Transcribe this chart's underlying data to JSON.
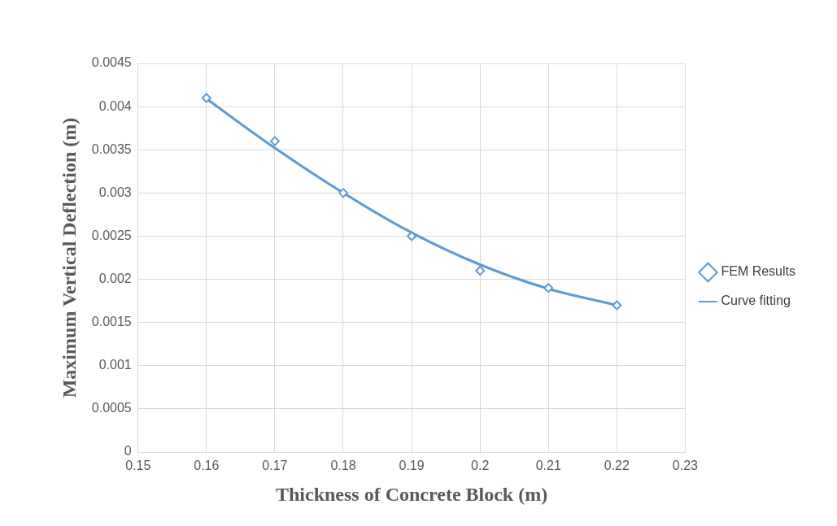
{
  "chart_data": {
    "type": "scatter",
    "xlabel": "Thickness of Concrete Block (m)",
    "ylabel": "Maximum Vertical Deflection (m)",
    "xlim": [
      0.15,
      0.23
    ],
    "xticks": [
      0.15,
      0.16,
      0.17,
      0.18,
      0.19,
      0.2,
      0.21,
      0.22,
      0.23
    ],
    "ylim": [
      0,
      0.0045
    ],
    "yticks": [
      0,
      0.0005,
      0.001,
      0.0015,
      0.002,
      0.0025,
      0.003,
      0.0035,
      0.004,
      0.0045
    ],
    "grid": true,
    "legend": "right",
    "series": [
      {
        "name": "FEM Results",
        "marker": "diamond",
        "color": "#5b9bd5",
        "x": [
          0.16,
          0.17,
          0.18,
          0.19,
          0.2,
          0.21,
          0.22
        ],
        "values": [
          0.0041,
          0.0036,
          0.003,
          0.0025,
          0.0021,
          0.0019,
          0.0017
        ]
      },
      {
        "name": "Curve fitting",
        "type": "line",
        "marker": "none",
        "line_style": "solid",
        "color": "#5b9bd5",
        "x": [
          0.16,
          0.17,
          0.18,
          0.19,
          0.2,
          0.21,
          0.22
        ],
        "values": [
          0.00409,
          0.00352,
          0.003,
          0.00254,
          0.00217,
          0.00189,
          0.0017
        ]
      }
    ]
  }
}
